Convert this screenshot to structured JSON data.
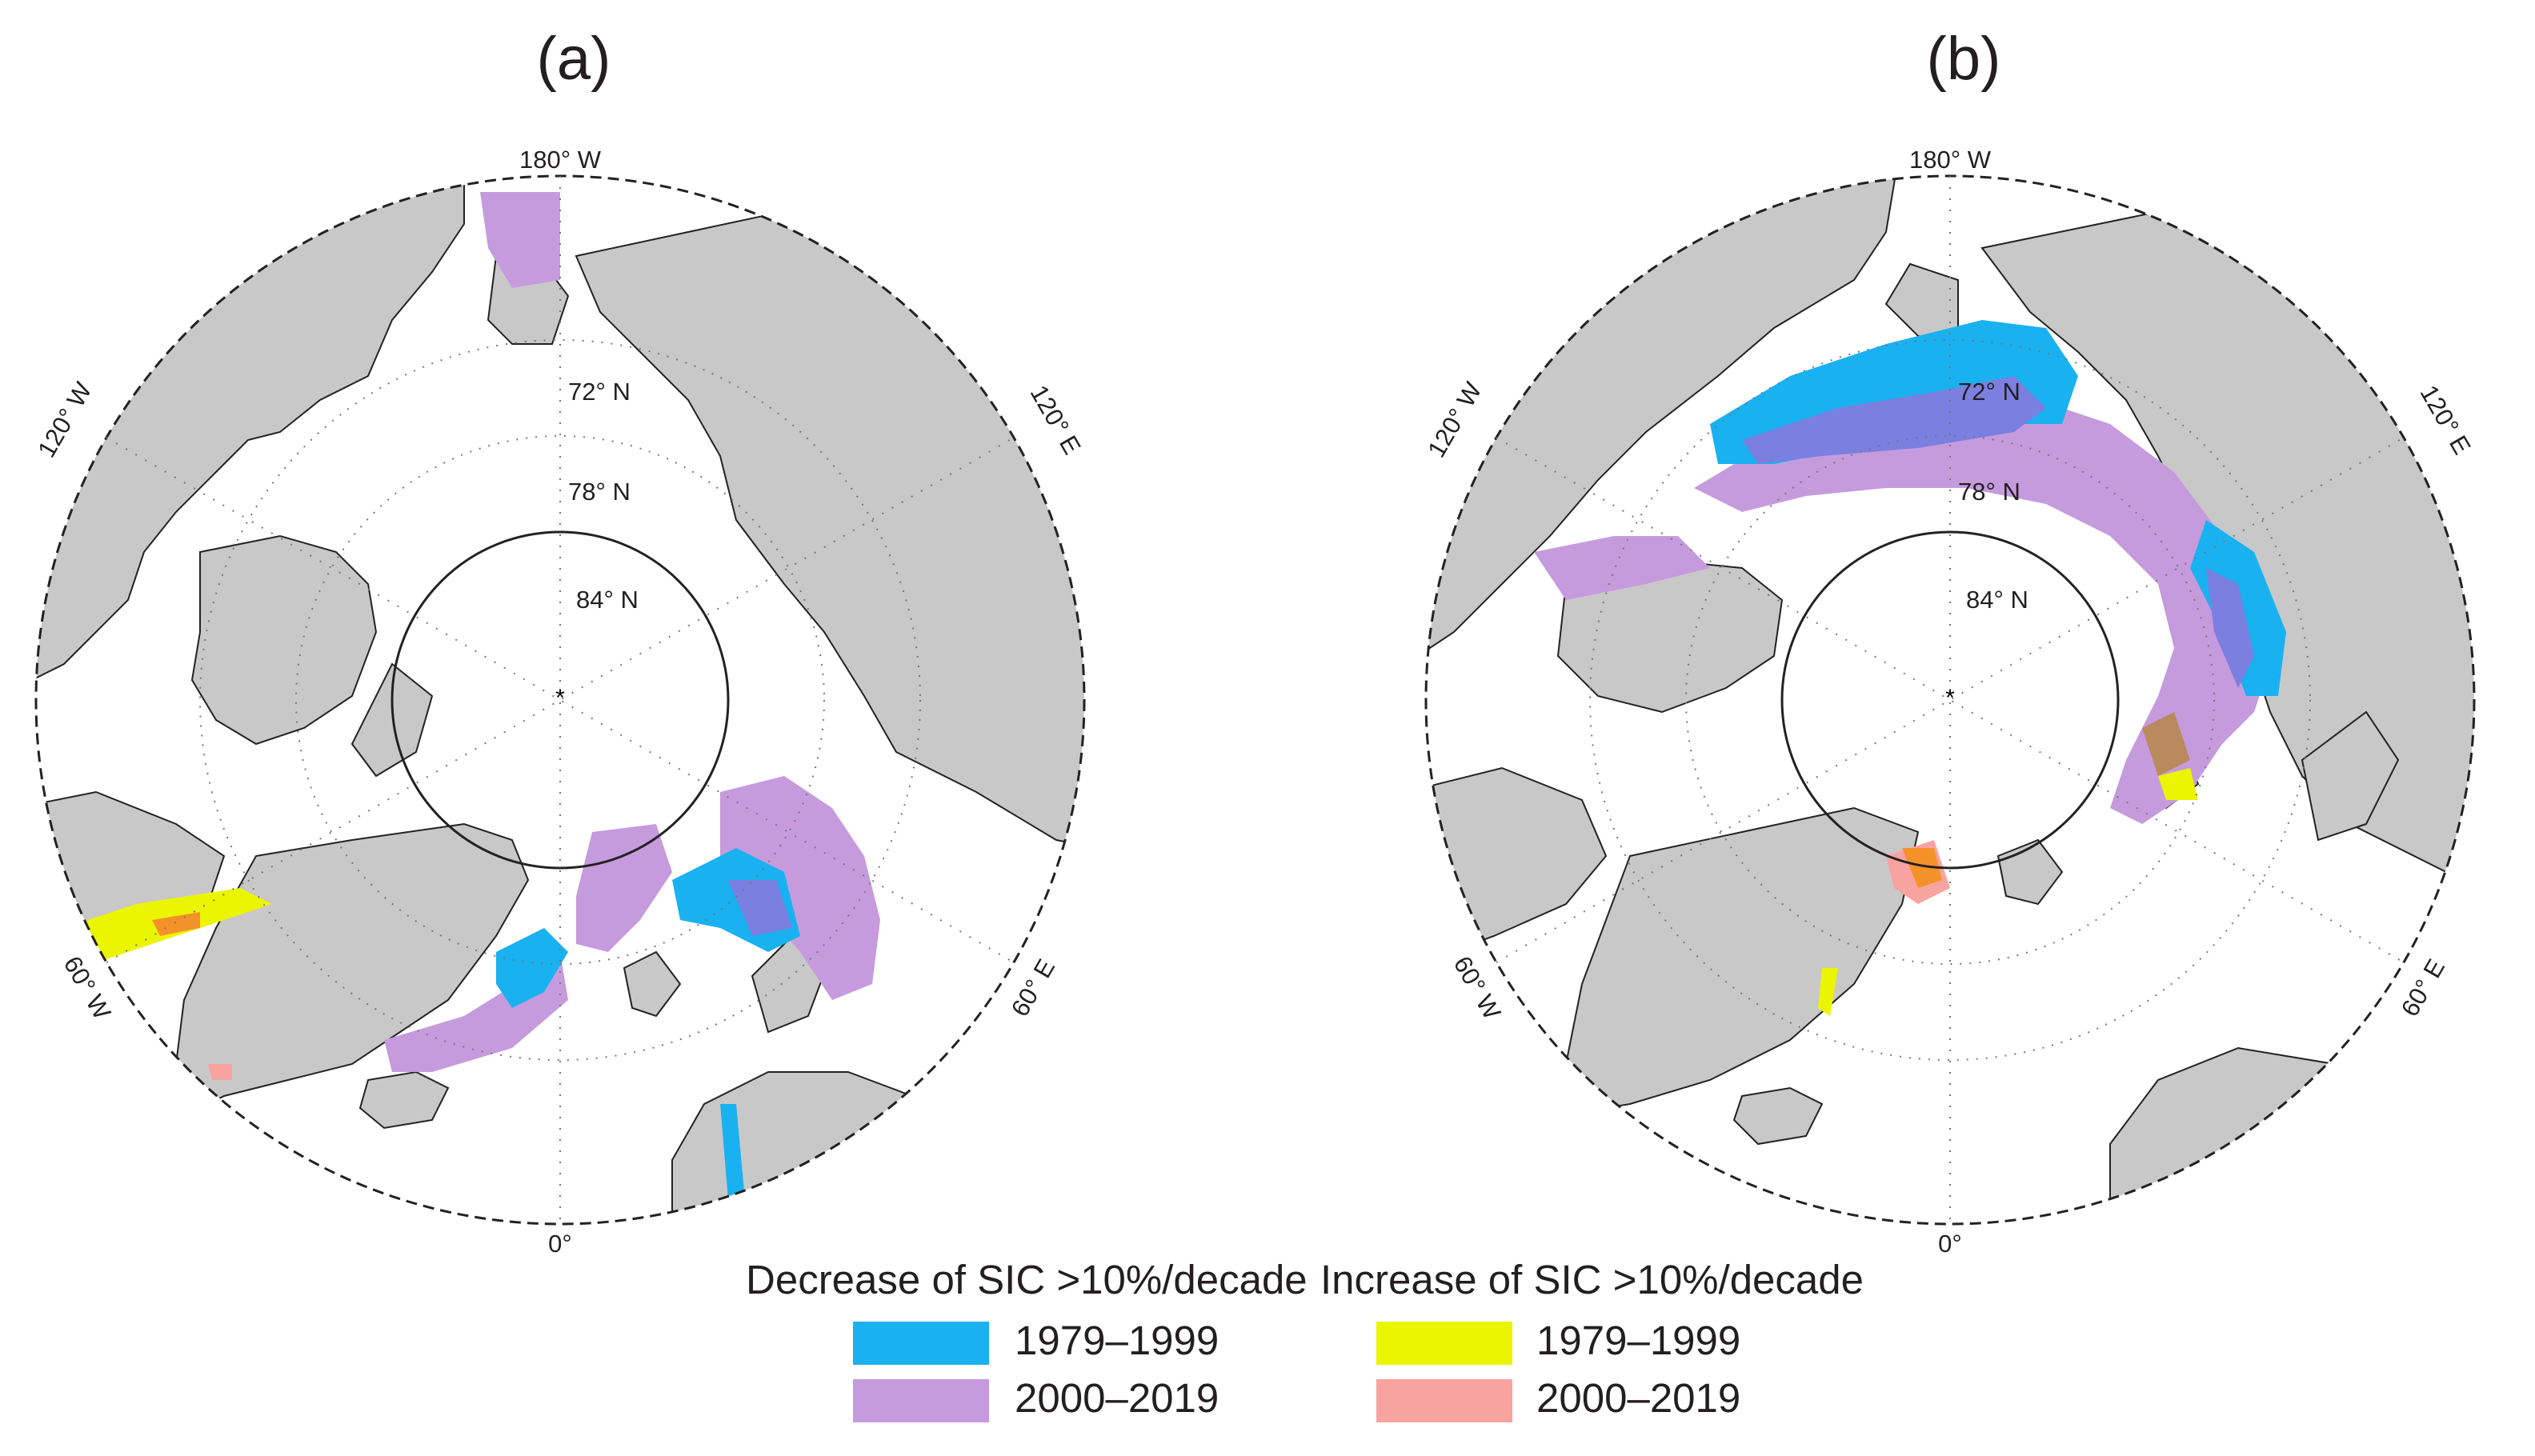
{
  "panels": [
    {
      "label": "(a)",
      "lon_labels": {
        "top": "180° W",
        "left": "120° W",
        "right": "120° E",
        "bottom_left": "60° W",
        "bottom_right": "60° E",
        "bottom": "0°"
      },
      "lat_labels": [
        "72° N",
        "78° N",
        "84° N"
      ]
    },
    {
      "label": "(b)",
      "lon_labels": {
        "top": "180° W",
        "left": "120° W",
        "right": "120° E",
        "bottom_left": "60° W",
        "bottom_right": "60° E",
        "bottom": "0°"
      },
      "lat_labels": [
        "72° N",
        "78° N",
        "84° N"
      ]
    }
  ],
  "legend": {
    "decrease_title": "Decrease of SIC >10%/decade",
    "increase_title": "Increase of SIC >10%/decade",
    "items": [
      {
        "group": "decrease",
        "label": "1979–1999",
        "color": "#1ab1f1"
      },
      {
        "group": "decrease",
        "label": "2000–2019",
        "color": "#c69bdd"
      },
      {
        "group": "increase",
        "label": "1979–1999",
        "color": "#ebf500"
      },
      {
        "group": "increase",
        "label": "2000–2019",
        "color": "#f9a3a1"
      }
    ]
  },
  "colors": {
    "land": "#c8c8c8",
    "ocean": "#ffffff",
    "decrease_1979_1999": "#1ab1f1",
    "decrease_2000_2019": "#c69bdd",
    "overlap_decrease": "#7b7fe0",
    "increase_1979_1999": "#ebf500",
    "increase_2000_2019": "#f9a3a1",
    "overlap_increase": "#f4922a"
  }
}
